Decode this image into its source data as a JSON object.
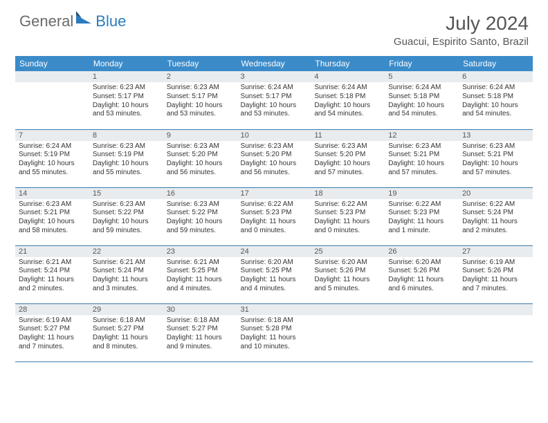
{
  "logo": {
    "text1": "General",
    "text2": "Blue"
  },
  "title": "July 2024",
  "location": "Guacui, Espirito Santo, Brazil",
  "headers_bg": "#3b8bc9",
  "weekdays": [
    "Sunday",
    "Monday",
    "Tuesday",
    "Wednesday",
    "Thursday",
    "Friday",
    "Saturday"
  ],
  "weeks": [
    [
      {
        "n": "",
        "sr": "",
        "ss": "",
        "dl": ""
      },
      {
        "n": "1",
        "sr": "Sunrise: 6:23 AM",
        "ss": "Sunset: 5:17 PM",
        "dl": "Daylight: 10 hours and 53 minutes."
      },
      {
        "n": "2",
        "sr": "Sunrise: 6:23 AM",
        "ss": "Sunset: 5:17 PM",
        "dl": "Daylight: 10 hours and 53 minutes."
      },
      {
        "n": "3",
        "sr": "Sunrise: 6:24 AM",
        "ss": "Sunset: 5:17 PM",
        "dl": "Daylight: 10 hours and 53 minutes."
      },
      {
        "n": "4",
        "sr": "Sunrise: 6:24 AM",
        "ss": "Sunset: 5:18 PM",
        "dl": "Daylight: 10 hours and 54 minutes."
      },
      {
        "n": "5",
        "sr": "Sunrise: 6:24 AM",
        "ss": "Sunset: 5:18 PM",
        "dl": "Daylight: 10 hours and 54 minutes."
      },
      {
        "n": "6",
        "sr": "Sunrise: 6:24 AM",
        "ss": "Sunset: 5:18 PM",
        "dl": "Daylight: 10 hours and 54 minutes."
      }
    ],
    [
      {
        "n": "7",
        "sr": "Sunrise: 6:24 AM",
        "ss": "Sunset: 5:19 PM",
        "dl": "Daylight: 10 hours and 55 minutes."
      },
      {
        "n": "8",
        "sr": "Sunrise: 6:23 AM",
        "ss": "Sunset: 5:19 PM",
        "dl": "Daylight: 10 hours and 55 minutes."
      },
      {
        "n": "9",
        "sr": "Sunrise: 6:23 AM",
        "ss": "Sunset: 5:20 PM",
        "dl": "Daylight: 10 hours and 56 minutes."
      },
      {
        "n": "10",
        "sr": "Sunrise: 6:23 AM",
        "ss": "Sunset: 5:20 PM",
        "dl": "Daylight: 10 hours and 56 minutes."
      },
      {
        "n": "11",
        "sr": "Sunrise: 6:23 AM",
        "ss": "Sunset: 5:20 PM",
        "dl": "Daylight: 10 hours and 57 minutes."
      },
      {
        "n": "12",
        "sr": "Sunrise: 6:23 AM",
        "ss": "Sunset: 5:21 PM",
        "dl": "Daylight: 10 hours and 57 minutes."
      },
      {
        "n": "13",
        "sr": "Sunrise: 6:23 AM",
        "ss": "Sunset: 5:21 PM",
        "dl": "Daylight: 10 hours and 57 minutes."
      }
    ],
    [
      {
        "n": "14",
        "sr": "Sunrise: 6:23 AM",
        "ss": "Sunset: 5:21 PM",
        "dl": "Daylight: 10 hours and 58 minutes."
      },
      {
        "n": "15",
        "sr": "Sunrise: 6:23 AM",
        "ss": "Sunset: 5:22 PM",
        "dl": "Daylight: 10 hours and 59 minutes."
      },
      {
        "n": "16",
        "sr": "Sunrise: 6:23 AM",
        "ss": "Sunset: 5:22 PM",
        "dl": "Daylight: 10 hours and 59 minutes."
      },
      {
        "n": "17",
        "sr": "Sunrise: 6:22 AM",
        "ss": "Sunset: 5:23 PM",
        "dl": "Daylight: 11 hours and 0 minutes."
      },
      {
        "n": "18",
        "sr": "Sunrise: 6:22 AM",
        "ss": "Sunset: 5:23 PM",
        "dl": "Daylight: 11 hours and 0 minutes."
      },
      {
        "n": "19",
        "sr": "Sunrise: 6:22 AM",
        "ss": "Sunset: 5:23 PM",
        "dl": "Daylight: 11 hours and 1 minute."
      },
      {
        "n": "20",
        "sr": "Sunrise: 6:22 AM",
        "ss": "Sunset: 5:24 PM",
        "dl": "Daylight: 11 hours and 2 minutes."
      }
    ],
    [
      {
        "n": "21",
        "sr": "Sunrise: 6:21 AM",
        "ss": "Sunset: 5:24 PM",
        "dl": "Daylight: 11 hours and 2 minutes."
      },
      {
        "n": "22",
        "sr": "Sunrise: 6:21 AM",
        "ss": "Sunset: 5:24 PM",
        "dl": "Daylight: 11 hours and 3 minutes."
      },
      {
        "n": "23",
        "sr": "Sunrise: 6:21 AM",
        "ss": "Sunset: 5:25 PM",
        "dl": "Daylight: 11 hours and 4 minutes."
      },
      {
        "n": "24",
        "sr": "Sunrise: 6:20 AM",
        "ss": "Sunset: 5:25 PM",
        "dl": "Daylight: 11 hours and 4 minutes."
      },
      {
        "n": "25",
        "sr": "Sunrise: 6:20 AM",
        "ss": "Sunset: 5:26 PM",
        "dl": "Daylight: 11 hours and 5 minutes."
      },
      {
        "n": "26",
        "sr": "Sunrise: 6:20 AM",
        "ss": "Sunset: 5:26 PM",
        "dl": "Daylight: 11 hours and 6 minutes."
      },
      {
        "n": "27",
        "sr": "Sunrise: 6:19 AM",
        "ss": "Sunset: 5:26 PM",
        "dl": "Daylight: 11 hours and 7 minutes."
      }
    ],
    [
      {
        "n": "28",
        "sr": "Sunrise: 6:19 AM",
        "ss": "Sunset: 5:27 PM",
        "dl": "Daylight: 11 hours and 7 minutes."
      },
      {
        "n": "29",
        "sr": "Sunrise: 6:18 AM",
        "ss": "Sunset: 5:27 PM",
        "dl": "Daylight: 11 hours and 8 minutes."
      },
      {
        "n": "30",
        "sr": "Sunrise: 6:18 AM",
        "ss": "Sunset: 5:27 PM",
        "dl": "Daylight: 11 hours and 9 minutes."
      },
      {
        "n": "31",
        "sr": "Sunrise: 6:18 AM",
        "ss": "Sunset: 5:28 PM",
        "dl": "Daylight: 11 hours and 10 minutes."
      },
      {
        "n": "",
        "sr": "",
        "ss": "",
        "dl": ""
      },
      {
        "n": "",
        "sr": "",
        "ss": "",
        "dl": ""
      },
      {
        "n": "",
        "sr": "",
        "ss": "",
        "dl": ""
      }
    ]
  ]
}
